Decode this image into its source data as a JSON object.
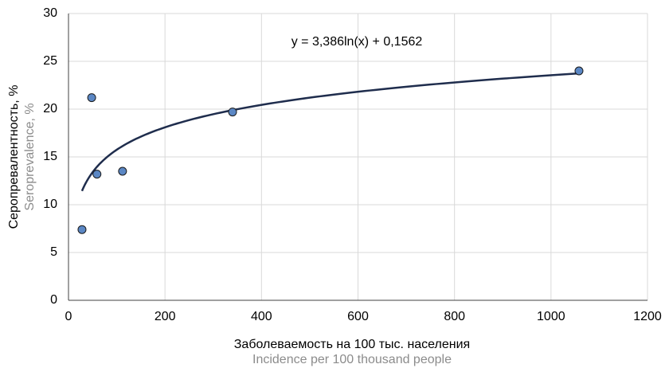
{
  "chart_data": {
    "type": "scatter",
    "x_label": "Заболеваемость на 100 тыс. населения",
    "x_label_en": "Incidence per 100 thousand people",
    "y_label": "Серопревалентность, %",
    "y_label_en": "Seroprevalence, %",
    "x": [
      28,
      48,
      59,
      112,
      340,
      1058
    ],
    "values": [
      7.4,
      21.2,
      13.2,
      13.5,
      19.7,
      24.0
    ],
    "color": "#5b87c4",
    "trendline": {
      "a": 3.386,
      "b": 0.1562,
      "equation": "y = 3,386ln(x) + 0,1562",
      "color": "#1f2d4d"
    },
    "xlim": [
      0,
      1200
    ],
    "xticks": [
      0,
      200,
      400,
      600,
      800,
      1000,
      1200
    ],
    "ylim": [
      0,
      30
    ],
    "yticks": [
      0,
      5,
      10,
      15,
      20,
      25,
      30
    ],
    "grid": true
  }
}
